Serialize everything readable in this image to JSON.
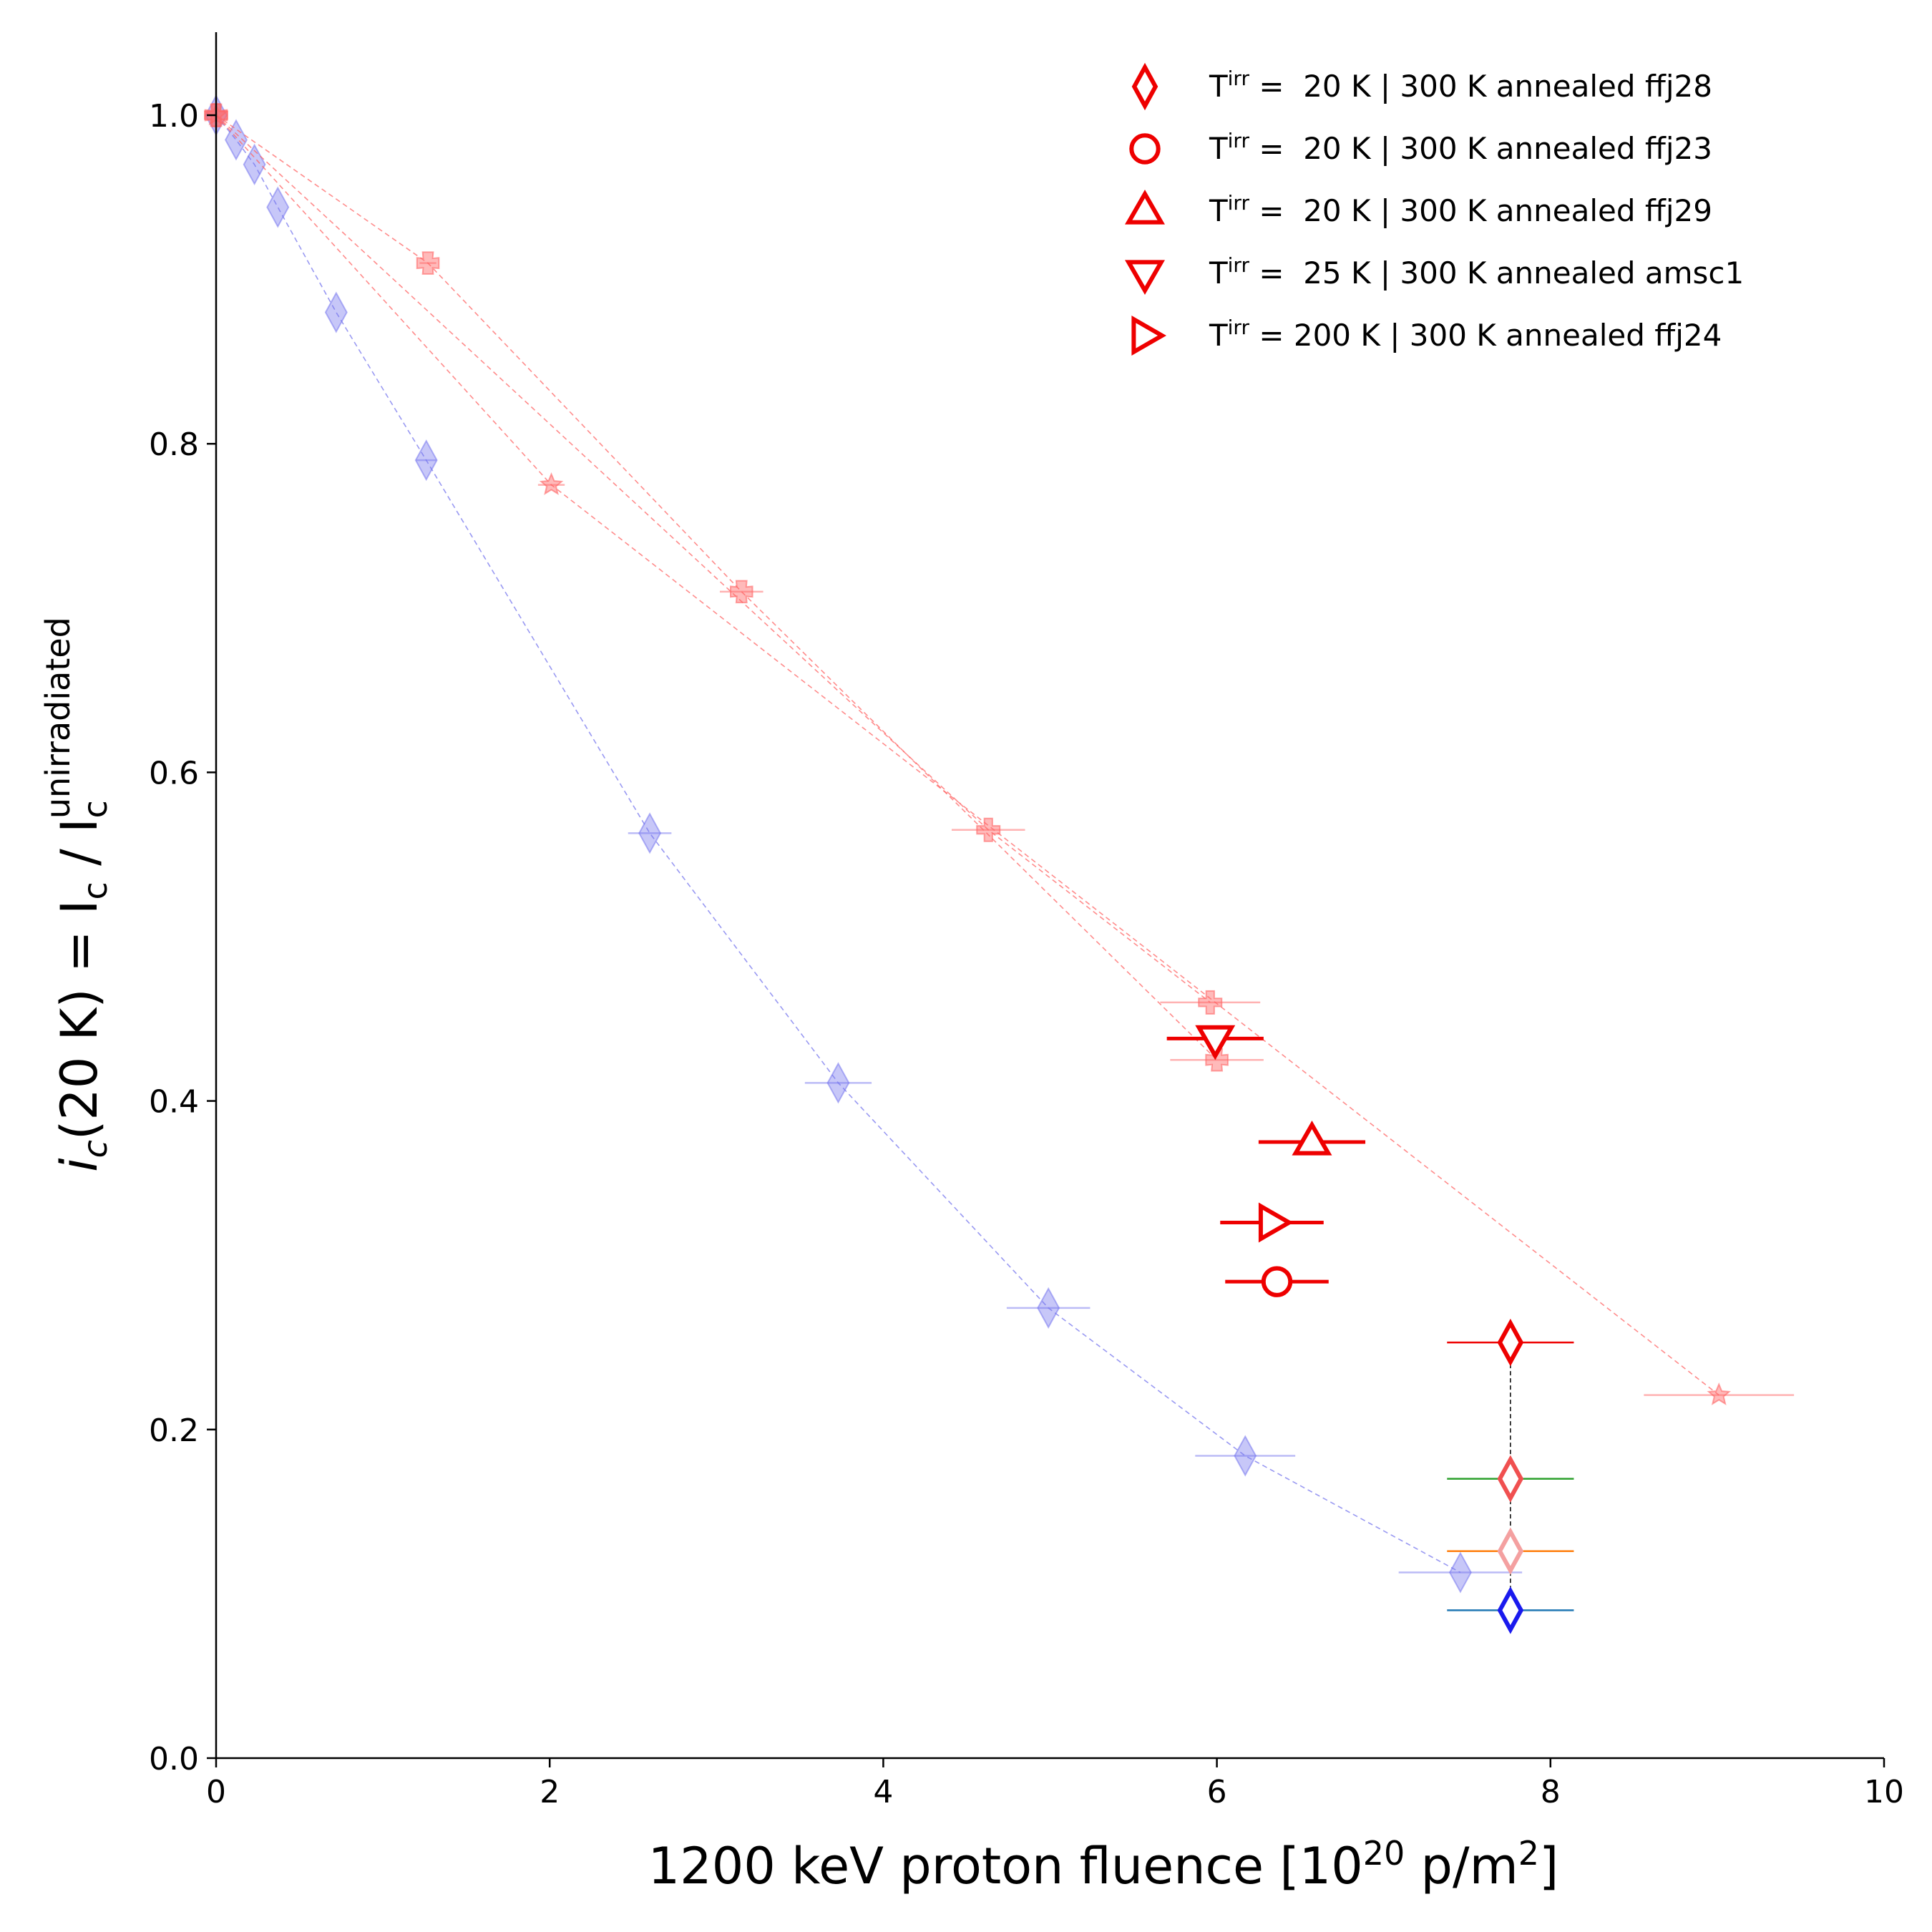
{
  "chart_data": {
    "type": "scatter",
    "xlabel": {
      "main": "1200 keV proton fluence [10",
      "sup1": "20",
      "mid": " p/m",
      "sup2": "2",
      "end": "]"
    },
    "ylabel": {
      "italic_i": "i",
      "sub_c": "c",
      "main": "(20 K) = I",
      "sub_c2": "c",
      "slash": " / I",
      "sub_c3": "c",
      "sup": "unirradiated"
    },
    "xlim": [
      0,
      10
    ],
    "ylim": [
      0,
      1.05
    ],
    "xticks": [
      0,
      2,
      4,
      6,
      8,
      10
    ],
    "xtick_labels": [
      "0",
      "2",
      "4",
      "6",
      "8",
      "10"
    ],
    "yticks": [
      0.0,
      0.2,
      0.4,
      0.6,
      0.8,
      1.0
    ],
    "ytick_labels": [
      "0.0",
      "0.2",
      "0.4",
      "0.6",
      "0.8",
      "1.0"
    ],
    "grid": false,
    "legend_position": "top-right",
    "legend": [
      {
        "marker": "diamond",
        "prefix": "T",
        "sup": "irr",
        "text": " =  20 K | 300 K annealed ffj28",
        "color": "#ee0000"
      },
      {
        "marker": "circle",
        "prefix": "T",
        "sup": "irr",
        "text": " =  20 K | 300 K annealed ffj23",
        "color": "#ee0000"
      },
      {
        "marker": "triangle-up",
        "prefix": "T",
        "sup": "irr",
        "text": " =  20 K | 300 K annealed ffj29",
        "color": "#ee0000"
      },
      {
        "marker": "triangle-down",
        "prefix": "T",
        "sup": "irr",
        "text": " =  25 K | 300 K annealed amsc1",
        "color": "#ee0000"
      },
      {
        "marker": "triangle-right",
        "prefix": "T",
        "sup": "irr",
        "text": " = 200 K | 300 K annealed ffj24",
        "color": "#ee0000"
      }
    ],
    "colors": {
      "blue": "#1a1aee",
      "red": "#ee0000",
      "faded_red": "#ff6666",
      "faded_blue": "#7777ee"
    },
    "background_series": [
      {
        "marker": "diamond",
        "color": "#7777ee",
        "alpha": 0.55,
        "points": [
          [
            0.0,
            1.0,
            0.0
          ],
          [
            0.12,
            0.985,
            0.0
          ],
          [
            0.23,
            0.97,
            0.0
          ],
          [
            0.37,
            0.944,
            0.0
          ],
          [
            0.72,
            0.88,
            0.0
          ],
          [
            1.26,
            0.79,
            0.06
          ],
          [
            2.6,
            0.563,
            0.13
          ],
          [
            3.73,
            0.411,
            0.2
          ],
          [
            4.99,
            0.274,
            0.25
          ],
          [
            6.17,
            0.184,
            0.3
          ],
          [
            7.46,
            0.113,
            0.37
          ]
        ]
      },
      {
        "marker": "x",
        "color": "#ff6666",
        "alpha": 0.6,
        "points": [
          [
            0.0,
            1.0,
            0.0
          ],
          [
            1.27,
            0.91,
            0.05
          ],
          [
            3.15,
            0.71,
            0.13
          ],
          [
            6.0,
            0.425,
            0.28
          ]
        ]
      },
      {
        "marker": "plus",
        "color": "#ff6666",
        "alpha": 0.6,
        "points": [
          [
            0.0,
            1.0,
            0.0
          ],
          [
            4.63,
            0.565,
            0.22
          ],
          [
            5.96,
            0.46,
            0.3
          ]
        ]
      },
      {
        "marker": "star",
        "color": "#ff6666",
        "alpha": 0.6,
        "points": [
          [
            0.0,
            1.0,
            0.0
          ],
          [
            2.01,
            0.775,
            0.08
          ],
          [
            9.01,
            0.221,
            0.45
          ]
        ]
      }
    ],
    "annealed_points": [
      {
        "label": "ffj28",
        "marker": "diamond",
        "x": 7.76,
        "y": 0.253,
        "xerr": 0.38,
        "color": "#ee0000"
      },
      {
        "label": "ffj23",
        "marker": "circle",
        "x": 6.36,
        "y": 0.29,
        "xerr": 0.31,
        "color": "#ee0000"
      },
      {
        "label": "ffj29",
        "marker": "triangle-up",
        "x": 6.57,
        "y": 0.375,
        "xerr": 0.32,
        "color": "#ee0000"
      },
      {
        "label": "amsc1",
        "marker": "triangle-down",
        "x": 5.99,
        "y": 0.438,
        "xerr": 0.29,
        "color": "#ee0000"
      },
      {
        "label": "ffj24",
        "marker": "triangle-right",
        "x": 6.33,
        "y": 0.326,
        "xerr": 0.31,
        "color": "#ee0000"
      }
    ],
    "stacked_diamonds": [
      {
        "x": 7.76,
        "y": 0.17,
        "marker_color": "#f05050",
        "bar_color": "#2ca02c",
        "xerr": 0.38
      },
      {
        "x": 7.76,
        "y": 0.126,
        "marker_color": "#f4a0a0",
        "bar_color": "#ff7f0e",
        "xerr": 0.38
      },
      {
        "x": 7.76,
        "y": 0.09,
        "marker_color": "#1a1aee",
        "bar_color": "#1f77b4",
        "xerr": 0.38
      }
    ]
  }
}
